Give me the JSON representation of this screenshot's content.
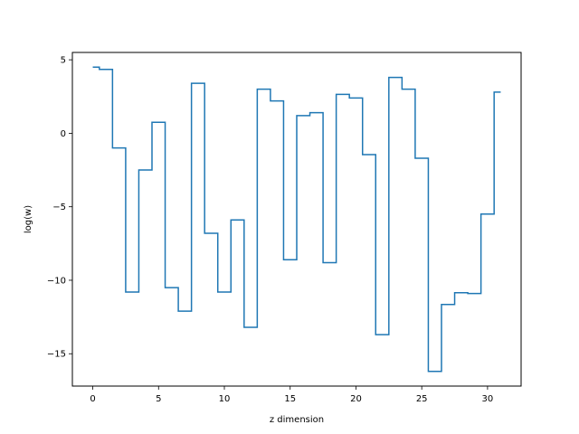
{
  "chart_data": {
    "type": "line",
    "drawstyle": "steps-mid",
    "title": "",
    "xlabel": "z dimension",
    "ylabel": "log(w)",
    "xlim": [
      -1.55,
      32.55
    ],
    "ylim": [
      -17.2,
      5.5
    ],
    "xticks": [
      0,
      5,
      10,
      15,
      20,
      25,
      30
    ],
    "yticks": [
      -15,
      -10,
      -5,
      0,
      5
    ],
    "ytick_labels": [
      "−15",
      "−10",
      "−5",
      "0",
      "5"
    ],
    "grid": false,
    "legend": "none",
    "series": [
      {
        "color": "#1f77b4",
        "x": [
          0,
          1,
          2,
          3,
          4,
          5,
          6,
          7,
          8,
          9,
          10,
          11,
          12,
          13,
          14,
          15,
          16,
          17,
          18,
          19,
          20,
          21,
          22,
          23,
          24,
          25,
          26,
          27,
          28,
          29,
          30,
          31
        ],
        "y": [
          4.5,
          4.35,
          -1.0,
          -10.8,
          -2.5,
          0.75,
          -10.5,
          -12.1,
          3.4,
          -6.8,
          -10.8,
          -5.9,
          -13.2,
          3.0,
          2.2,
          -8.6,
          1.2,
          1.4,
          -8.8,
          2.65,
          2.4,
          -1.45,
          -13.7,
          3.8,
          3.0,
          -1.7,
          -16.2,
          -11.65,
          -10.85,
          -10.9,
          -5.5,
          2.8
        ]
      }
    ]
  }
}
